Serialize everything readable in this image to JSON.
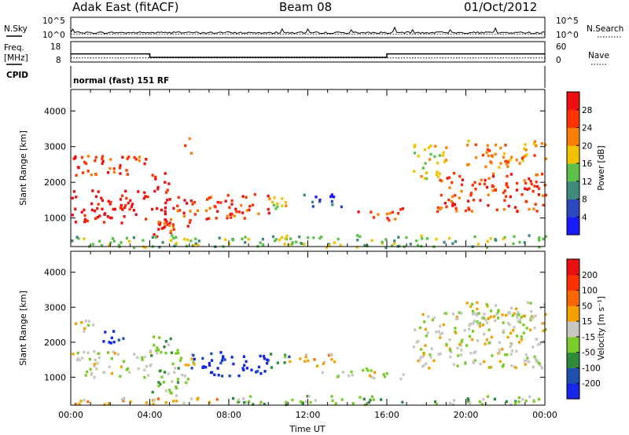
{
  "header": {
    "radar": "Adak East (fitACF)",
    "beam": "Beam 08",
    "date": "01/Oct/2012"
  },
  "top_panels": {
    "nsky_label": "N.Sky",
    "nsky_top": "10^5",
    "nsky_bottom": "10^0",
    "nsearch_label": "N.Search",
    "nsearch_top": "10^5",
    "nsearch_bottom": "10^0",
    "freq_label_1": "Freq.",
    "freq_label_2": "[MHz]",
    "freq_top": "18",
    "freq_bottom": "8",
    "nave_label": "Nave",
    "nave_top": "60",
    "nave_bottom": "0",
    "cpid_label": "CPID",
    "cpid_text": "normal (fast) 151 RF"
  },
  "chart_data": [
    {
      "type": "line",
      "panel": "noise",
      "x_unit": "hours UT",
      "xlim": [
        0,
        24
      ],
      "series": [
        {
          "name": "N.Sky",
          "style": "solid",
          "level_log10": 1.0
        },
        {
          "name": "N.Search",
          "style": "dotted",
          "level_log10": 0.6
        }
      ]
    },
    {
      "type": "line",
      "panel": "frequency",
      "xlim": [
        0,
        24
      ],
      "series": [
        {
          "name": "Freq.",
          "x": [
            0,
            4,
            4,
            16,
            16,
            24
          ],
          "y": [
            12,
            12,
            10.3,
            10.3,
            12,
            12
          ]
        },
        {
          "name": "Nave",
          "x": [
            0,
            24
          ],
          "y": [
            10,
            10
          ]
        }
      ]
    },
    {
      "type": "heatmap",
      "panel": "power",
      "ylabel": "Slant Range [km]",
      "ylim": [
        200,
        4600
      ],
      "yticks": [
        1000,
        2000,
        3000,
        4000
      ],
      "xlim": [
        0,
        24
      ],
      "colorbar": {
        "label": "Power [dB]",
        "ticks": [
          "4",
          "8",
          "12",
          "16",
          "20",
          "24",
          "28"
        ],
        "colors": [
          "#1a1aff",
          "#2b48c0",
          "#3f8a78",
          "#5cc04a",
          "#f2c200",
          "#ff7f00",
          "#ff3300",
          "#ee1010"
        ]
      },
      "regions": [
        {
          "t0": 0.0,
          "t1": 4.0,
          "r0": 900,
          "r1": 1850,
          "level": 7
        },
        {
          "t0": 0.0,
          "t1": 4.0,
          "r0": 2200,
          "r1": 2800,
          "level": 6
        },
        {
          "t0": 4.0,
          "t1": 5.0,
          "r0": 500,
          "r1": 2300,
          "level": 7
        },
        {
          "t0": 4.3,
          "t1": 5.2,
          "r0": 600,
          "r1": 1100,
          "level": 6
        },
        {
          "t0": 5.0,
          "t1": 6.0,
          "r0": 600,
          "r1": 1700,
          "level": 6
        },
        {
          "t0": 5.7,
          "t1": 6.1,
          "r0": 2800,
          "r1": 3300,
          "level": 5
        },
        {
          "t0": 6.0,
          "t1": 10.0,
          "r0": 1000,
          "r1": 1700,
          "level": 6
        },
        {
          "t0": 10.0,
          "t1": 11.5,
          "r0": 1250,
          "r1": 1700,
          "level": 4
        },
        {
          "t0": 11.5,
          "t1": 13.7,
          "r0": 1350,
          "r1": 1700,
          "level": 1
        },
        {
          "t0": 14.5,
          "t1": 16.8,
          "r0": 950,
          "r1": 1300,
          "level": 6
        },
        {
          "t0": 17.3,
          "t1": 19.0,
          "r0": 2000,
          "r1": 3100,
          "level": 4
        },
        {
          "t0": 18.5,
          "t1": 24.0,
          "r0": 1200,
          "r1": 2300,
          "level": 6
        },
        {
          "t0": 20.0,
          "t1": 24.0,
          "r0": 2450,
          "r1": 3200,
          "level": 5
        },
        {
          "t0": 0.0,
          "t1": 24.0,
          "r0": 200,
          "r1": 550,
          "level": 3
        }
      ]
    },
    {
      "type": "heatmap",
      "panel": "velocity",
      "ylabel": "Slant Range [km]",
      "ylim": [
        200,
        4600
      ],
      "yticks": [
        1000,
        2000,
        3000,
        4000
      ],
      "xlim": [
        0,
        24
      ],
      "xticks": [
        "00:00",
        "04:00",
        "08:00",
        "12:00",
        "16:00",
        "20:00",
        "00:00"
      ],
      "xlabel": "Time UT",
      "colorbar": {
        "label": "Velocity [m s⁻¹]",
        "ticks": [
          "200",
          "100",
          "50",
          "15",
          "-15",
          "-50",
          "-100",
          "-200"
        ],
        "colors": [
          "#1428e6",
          "#1f4fb0",
          "#2f8a3a",
          "#7acc2a",
          "#c8c8c0",
          "#f3a000",
          "#ff6600",
          "#ff3000",
          "#e81010"
        ]
      },
      "regions": [
        {
          "t0": 0.0,
          "t1": 4.0,
          "r0": 1000,
          "r1": 1800,
          "level": 4
        },
        {
          "t0": 0.0,
          "t1": 1.2,
          "r0": 2300,
          "r1": 2700,
          "level": 4
        },
        {
          "t0": 1.5,
          "t1": 2.8,
          "r0": 2000,
          "r1": 2400,
          "level": 0
        },
        {
          "t0": 4.0,
          "t1": 5.5,
          "r0": 500,
          "r1": 2200,
          "level": 3
        },
        {
          "t0": 5.5,
          "t1": 6.2,
          "r0": 800,
          "r1": 1700,
          "level": 4
        },
        {
          "t0": 6.0,
          "t1": 10.0,
          "r0": 1050,
          "r1": 1750,
          "level": 0
        },
        {
          "t0": 10.0,
          "t1": 11.0,
          "r0": 1300,
          "r1": 1700,
          "level": 2
        },
        {
          "t0": 11.0,
          "t1": 13.5,
          "r0": 1350,
          "r1": 1700,
          "level": 5
        },
        {
          "t0": 12.5,
          "t1": 14.5,
          "r0": 1000,
          "r1": 1200,
          "level": 4
        },
        {
          "t0": 14.5,
          "t1": 16.8,
          "r0": 950,
          "r1": 1300,
          "level": 4
        },
        {
          "t0": 17.3,
          "t1": 24.0,
          "r0": 1300,
          "r1": 2900,
          "level": 4
        },
        {
          "t0": 20.0,
          "t1": 24.0,
          "r0": 2500,
          "r1": 3200,
          "level": 4
        },
        {
          "t0": 8.0,
          "t1": 24.0,
          "r0": 250,
          "r1": 500,
          "level": 3
        },
        {
          "t0": 0.0,
          "t1": 8.0,
          "r0": 250,
          "r1": 450,
          "level": 5
        }
      ]
    }
  ]
}
